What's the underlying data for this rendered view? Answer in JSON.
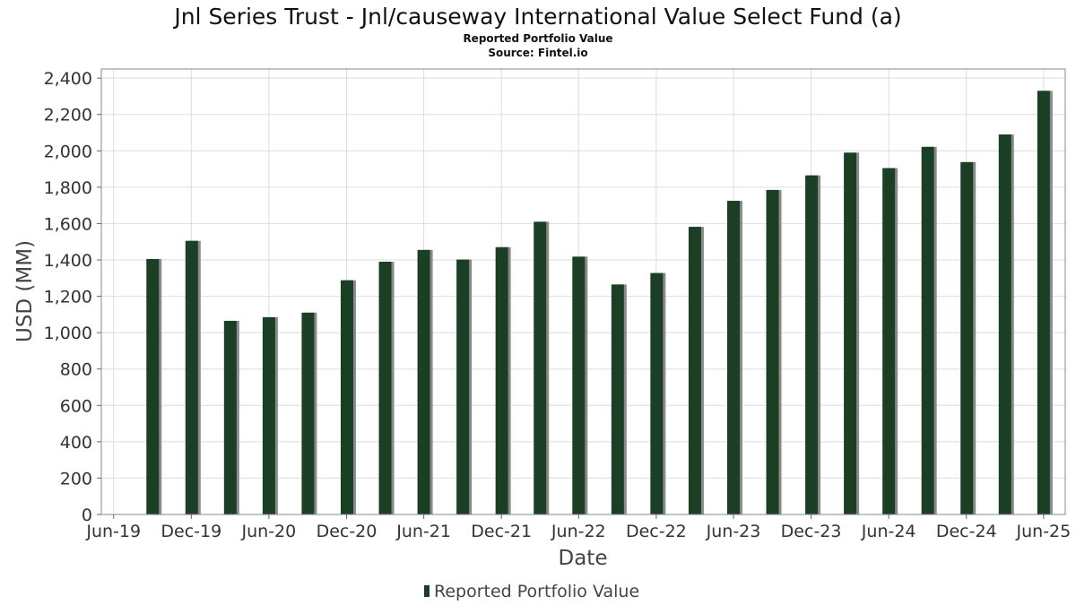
{
  "chart_data": {
    "type": "bar",
    "title": "Jnl Series Trust - Jnl/causeway International Value Select Fund (a)",
    "subtitle": "Reported Portfolio Value",
    "source": "Source: Fintel.io",
    "xlabel": "Date",
    "ylabel": "USD (MM)",
    "ylim": [
      0,
      2450
    ],
    "yticks": [
      0,
      200,
      400,
      600,
      800,
      1000,
      1200,
      1400,
      1600,
      1800,
      2000,
      2200,
      2400
    ],
    "ytick_labels": [
      "0",
      "200",
      "400",
      "600",
      "800",
      "1,000",
      "1,200",
      "1,400",
      "1,600",
      "1,800",
      "2,000",
      "2,200",
      "2,400"
    ],
    "xticks": [
      "Jun-19",
      "Dec-19",
      "Jun-20",
      "Dec-20",
      "Jun-21",
      "Dec-21",
      "Jun-22",
      "Dec-22",
      "Jun-23",
      "Dec-23",
      "Jun-24",
      "Dec-24",
      "Jun-25"
    ],
    "xlim": [
      "2019-06-01",
      "2025-08-20"
    ],
    "grid": true,
    "legend_position": "bottom-center",
    "colors": {
      "bar": "#1a3f24",
      "bar_shadow": "#8a8a8a",
      "grid": "#dddddd",
      "frame": "#888888"
    },
    "series": [
      {
        "name": "Reported Portfolio Value",
        "points": [
          {
            "date": "2019-09-30",
            "value": 1405
          },
          {
            "date": "2019-12-31",
            "value": 1505
          },
          {
            "date": "2020-03-31",
            "value": 1065
          },
          {
            "date": "2020-06-30",
            "value": 1085
          },
          {
            "date": "2020-09-30",
            "value": 1110
          },
          {
            "date": "2020-12-31",
            "value": 1288
          },
          {
            "date": "2021-03-31",
            "value": 1390
          },
          {
            "date": "2021-06-30",
            "value": 1455
          },
          {
            "date": "2021-09-30",
            "value": 1402
          },
          {
            "date": "2021-12-31",
            "value": 1470
          },
          {
            "date": "2022-03-31",
            "value": 1610
          },
          {
            "date": "2022-06-30",
            "value": 1418
          },
          {
            "date": "2022-09-30",
            "value": 1265
          },
          {
            "date": "2022-12-31",
            "value": 1328
          },
          {
            "date": "2023-03-31",
            "value": 1582
          },
          {
            "date": "2023-06-30",
            "value": 1725
          },
          {
            "date": "2023-09-30",
            "value": 1785
          },
          {
            "date": "2023-12-31",
            "value": 1865
          },
          {
            "date": "2024-03-31",
            "value": 1990
          },
          {
            "date": "2024-06-30",
            "value": 1905
          },
          {
            "date": "2024-09-30",
            "value": 2022
          },
          {
            "date": "2024-12-31",
            "value": 1938
          },
          {
            "date": "2025-03-31",
            "value": 2090
          },
          {
            "date": "2025-06-30",
            "value": 2330
          }
        ]
      }
    ]
  }
}
